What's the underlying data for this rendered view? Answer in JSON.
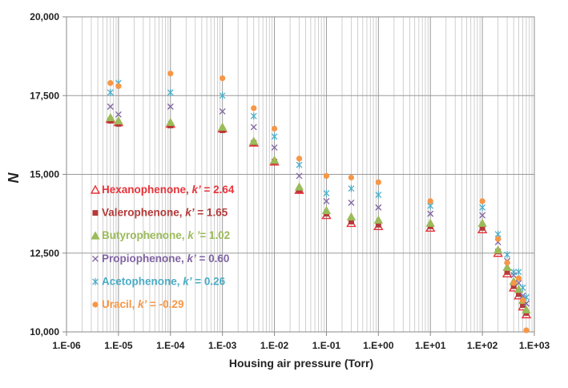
{
  "chart_data": {
    "type": "scatter",
    "title": "",
    "xlabel": "Housing air pressure (Torr)",
    "ylabel": "N",
    "xscale": "log",
    "xlim": [
      1e-06,
      1000
    ],
    "ylim": [
      10000,
      20000
    ],
    "x_ticks": [
      "1.E-06",
      "1.E-05",
      "1.E-04",
      "1.E-03",
      "1.E-02",
      "1.E-01",
      "1.E+00",
      "1.E+01",
      "1.E+02",
      "1.E+03"
    ],
    "y_ticks": [
      "10,000",
      "12,500",
      "15,000",
      "17,500",
      "20,000"
    ],
    "grid": true,
    "legend_position": "left-center",
    "series": [
      {
        "name": "Hexanophenone",
        "k_label": "k’",
        "value_label": " = 2.64",
        "color": "#e8333a",
        "marker": "triangle-open",
        "points": [
          [
            7e-06,
            16750
          ],
          [
            1e-05,
            16650
          ],
          [
            0.0001,
            16600
          ],
          [
            0.001,
            16450
          ],
          [
            0.004,
            16000
          ],
          [
            0.01,
            15400
          ],
          [
            0.03,
            14500
          ],
          [
            0.1,
            13700
          ],
          [
            0.3,
            13450
          ],
          [
            1,
            13350
          ],
          [
            10,
            13300
          ],
          [
            100,
            13250
          ],
          [
            200,
            12500
          ],
          [
            300,
            11850
          ],
          [
            400,
            11400
          ],
          [
            500,
            11150
          ],
          [
            600,
            10800
          ],
          [
            700,
            10550
          ]
        ]
      },
      {
        "name": "Valerophenone",
        "k_label": "k’",
        "value_label": " = 1.65",
        "color": "#b53a3a",
        "marker": "square",
        "points": [
          [
            7e-06,
            16700
          ],
          [
            1e-05,
            16600
          ],
          [
            0.0001,
            16550
          ],
          [
            0.001,
            16400
          ],
          [
            0.004,
            16000
          ],
          [
            0.01,
            15400
          ],
          [
            0.03,
            14500
          ],
          [
            0.1,
            13750
          ],
          [
            0.3,
            13500
          ],
          [
            1,
            13400
          ],
          [
            10,
            13350
          ],
          [
            100,
            13300
          ],
          [
            200,
            12550
          ],
          [
            300,
            11900
          ],
          [
            400,
            11450
          ],
          [
            500,
            11200
          ],
          [
            600,
            10850
          ],
          [
            700,
            10600
          ]
        ]
      },
      {
        "name": "Butyrophenone",
        "k_label": "k ’",
        "value_label": "= 1.02",
        "color": "#9bbb59",
        "marker": "triangle",
        "points": [
          [
            7e-06,
            16800
          ],
          [
            1e-05,
            16700
          ],
          [
            0.0001,
            16650
          ],
          [
            0.001,
            16500
          ],
          [
            0.004,
            16050
          ],
          [
            0.01,
            15450
          ],
          [
            0.03,
            14600
          ],
          [
            0.1,
            13850
          ],
          [
            0.3,
            13650
          ],
          [
            1,
            13550
          ],
          [
            10,
            13450
          ],
          [
            100,
            13450
          ],
          [
            200,
            12600
          ],
          [
            300,
            12050
          ],
          [
            400,
            11600
          ],
          [
            500,
            11350
          ],
          [
            600,
            11000
          ],
          [
            700,
            10700
          ]
        ]
      },
      {
        "name": "Propiophenone",
        "k_label": "k’",
        "value_label": " = 0.60",
        "color": "#8064a2",
        "marker": "x",
        "points": [
          [
            7e-06,
            17150
          ],
          [
            1e-05,
            16900
          ],
          [
            0.0001,
            17150
          ],
          [
            0.001,
            17000
          ],
          [
            0.004,
            16500
          ],
          [
            0.01,
            15850
          ],
          [
            0.03,
            14950
          ],
          [
            0.1,
            14150
          ],
          [
            0.3,
            14100
          ],
          [
            1,
            13950
          ],
          [
            10,
            13750
          ],
          [
            100,
            13700
          ],
          [
            200,
            12850
          ],
          [
            300,
            12250
          ],
          [
            400,
            11800
          ],
          [
            500,
            11550
          ],
          [
            600,
            11150
          ],
          [
            700,
            10900
          ]
        ]
      },
      {
        "name": "Acetophenone",
        "k_label": "k’",
        "value_label": " = 0.26",
        "color": "#4bacc6",
        "marker": "star",
        "points": [
          [
            7e-06,
            17600
          ],
          [
            1e-05,
            17900
          ],
          [
            0.0001,
            17600
          ],
          [
            0.001,
            17500
          ],
          [
            0.004,
            16850
          ],
          [
            0.01,
            16200
          ],
          [
            0.03,
            15300
          ],
          [
            0.1,
            14400
          ],
          [
            0.3,
            14550
          ],
          [
            1,
            14350
          ],
          [
            10,
            14000
          ],
          [
            100,
            13950
          ],
          [
            200,
            13100
          ],
          [
            300,
            12450
          ],
          [
            400,
            11900
          ],
          [
            500,
            11900
          ],
          [
            600,
            11400
          ],
          [
            700,
            11100
          ]
        ]
      },
      {
        "name": "Uracil",
        "k_label": "k’",
        "value_label": " = -0.29",
        "color": "#f79646",
        "marker": "circle",
        "points": [
          [
            7e-06,
            17900
          ],
          [
            1e-05,
            17800
          ],
          [
            0.0001,
            18200
          ],
          [
            0.001,
            18050
          ],
          [
            0.004,
            17100
          ],
          [
            0.01,
            16450
          ],
          [
            0.03,
            15500
          ],
          [
            0.1,
            14950
          ],
          [
            0.3,
            14900
          ],
          [
            1,
            14750
          ],
          [
            10,
            14150
          ],
          [
            100,
            14150
          ],
          [
            200,
            12950
          ],
          [
            300,
            12200
          ],
          [
            400,
            11550
          ],
          [
            500,
            11700
          ],
          [
            600,
            11000
          ],
          [
            700,
            10050
          ]
        ]
      }
    ]
  }
}
